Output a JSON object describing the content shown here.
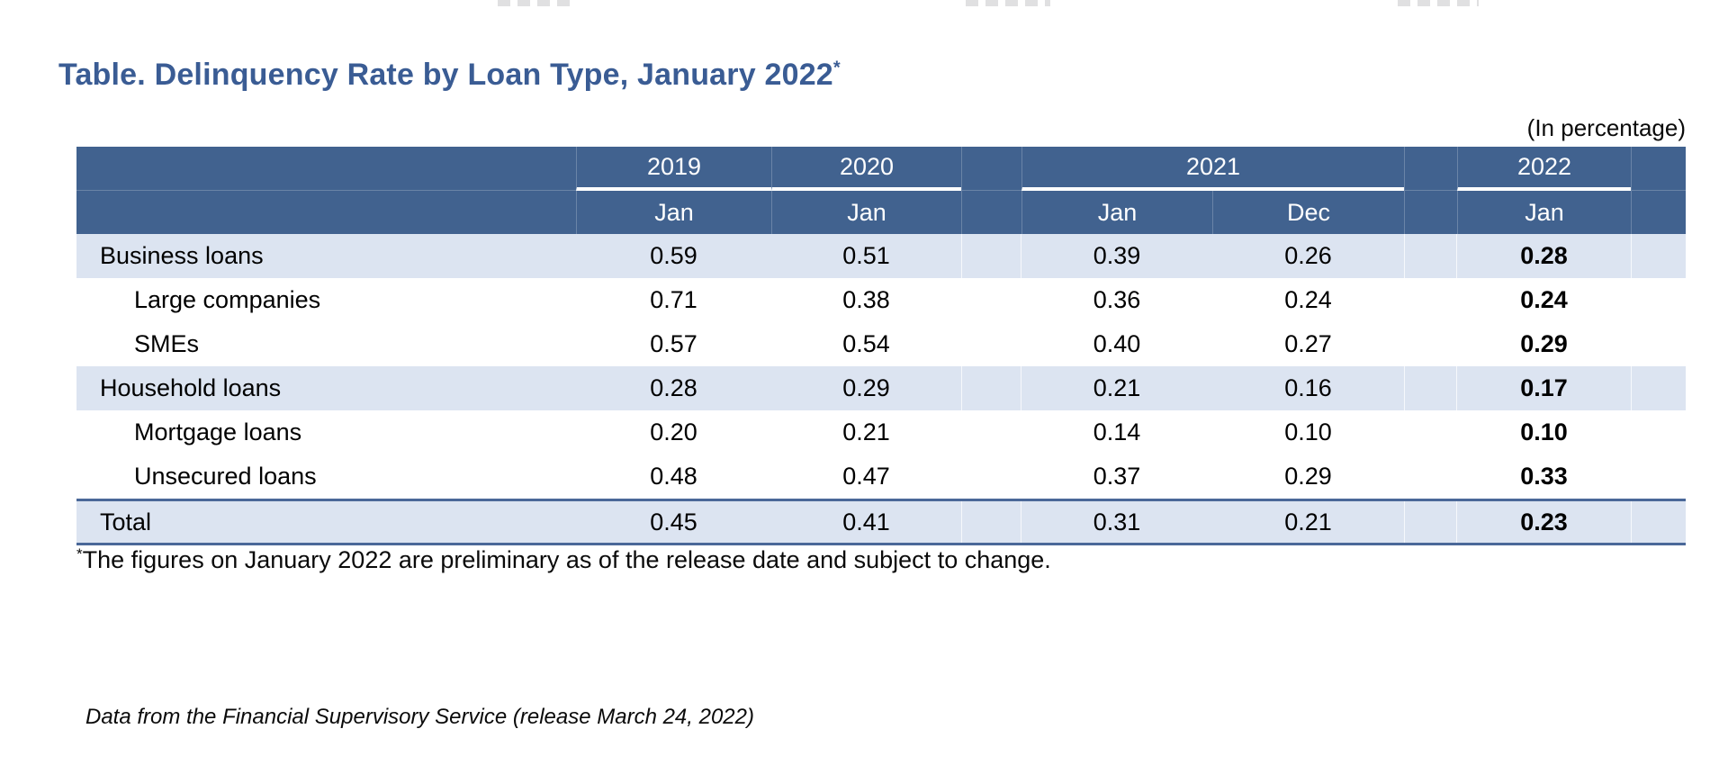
{
  "title": "Table. Delinquency Rate by Loan Type, January 2022",
  "title_marker": "*",
  "unit_note": "(In percentage)",
  "table": {
    "col_groups": [
      {
        "label": "2019",
        "months": [
          "Jan"
        ]
      },
      {
        "label": "2020",
        "months": [
          "Jan"
        ]
      },
      {
        "label": "2021",
        "months": [
          "Jan",
          "Dec"
        ]
      },
      {
        "label": "2022",
        "months": [
          "Jan"
        ]
      }
    ],
    "rows": [
      {
        "label": "Business loans",
        "values": [
          "0.59",
          "0.51",
          "0.39",
          "0.26",
          "0.28"
        ]
      },
      {
        "label": "Large companies",
        "values": [
          "0.71",
          "0.38",
          "0.36",
          "0.24",
          "0.24"
        ]
      },
      {
        "label": "SMEs",
        "values": [
          "0.57",
          "0.54",
          "0.40",
          "0.27",
          "0.29"
        ]
      },
      {
        "label": "Household loans",
        "values": [
          "0.28",
          "0.29",
          "0.21",
          "0.16",
          "0.17"
        ]
      },
      {
        "label": "Mortgage loans",
        "values": [
          "0.20",
          "0.21",
          "0.14",
          "0.10",
          "0.10"
        ]
      },
      {
        "label": "Unsecured loans",
        "values": [
          "0.48",
          "0.47",
          "0.37",
          "0.29",
          "0.33"
        ]
      },
      {
        "label": "Total",
        "values": [
          "0.45",
          "0.41",
          "0.31",
          "0.21",
          "0.23"
        ]
      }
    ]
  },
  "footnote": {
    "marker": "*",
    "text": "The figures on January 2022 are preliminary as of the release date and subject to change."
  },
  "source": "Data from the Financial Supervisory Service (release March 24, 2022)",
  "colors": {
    "header_bg": "#41628F",
    "row_shaded": "#DCE4F1",
    "title_text": "#3A5C94",
    "total_border": "#4A6899"
  }
}
